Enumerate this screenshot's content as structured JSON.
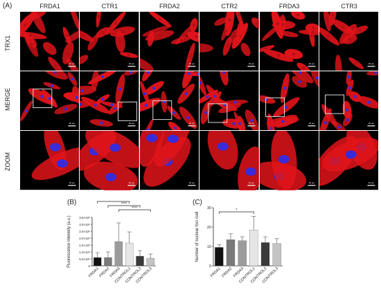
{
  "panel_labels": {
    "a": "(A)",
    "b": "(B)",
    "c": "(C)"
  },
  "columns": [
    "FRDA1",
    "CTR1",
    "FRDA2",
    "CTR2",
    "FRDA3",
    "CTR3"
  ],
  "rows": [
    "TRX1",
    "MERGE",
    "ZOOM"
  ],
  "scale_labels": [
    "20 μm",
    "20 μm",
    "20 μm",
    "20 μm",
    "20 μm",
    "20 μm"
  ],
  "colors": {
    "stain_red": "#e0141a",
    "nucleus_blue": "#3a2bd8",
    "background": "#000000"
  },
  "chart_data": [
    {
      "type": "bar",
      "panel": "(B)",
      "ylabel": "Fluorescence intensity (a.u.)",
      "categories": [
        "FRDA1",
        "FRDA2",
        "FRDA3",
        "CONTROL1",
        "CONTROL2",
        "CONTROL3"
      ],
      "values": [
        600000,
        600000,
        1750000,
        1650000,
        700000,
        550000
      ],
      "errors": [
        350000,
        400000,
        1350000,
        800000,
        400000,
        300000
      ],
      "bar_colors": [
        "#111111",
        "#7a7a7a",
        "#9c9c9c",
        "#e6e6e6",
        "#3a3a3a",
        "#c4c4c4"
      ],
      "ylim": [
        0,
        3500000
      ],
      "yticks": [
        "0",
        "5.0×10⁵",
        "1.0×10⁶",
        "1.5×10⁶",
        "2.0×10⁶",
        "2.5×10⁶",
        "3.0×10⁶",
        "3.5×10⁶"
      ],
      "significance": [
        {
          "from": "FRDA1",
          "to": "CONTROL1",
          "label": "*"
        },
        {
          "from": "FRDA2",
          "to": "CONTROL2",
          "label": "****"
        },
        {
          "from": "FRDA3",
          "to": "CONTROL3",
          "label": "****"
        }
      ]
    },
    {
      "type": "bar",
      "panel": "(C)",
      "ylabel": "Number of nuclear foci /cell",
      "categories": [
        "FRDA1",
        "FRDA2",
        "FRDA3",
        "CONTROL1",
        "CONTROL2",
        "CONTROL3"
      ],
      "values": [
        9.5,
        13.5,
        13,
        18.5,
        12,
        11.5
      ],
      "errors": [
        1.5,
        3,
        2,
        7,
        3,
        2.5
      ],
      "bar_colors": [
        "#111111",
        "#7a7a7a",
        "#9c9c9c",
        "#e6e6e6",
        "#3a3a3a",
        "#c4c4c4"
      ],
      "ylim": [
        0,
        30
      ],
      "yticks": [
        "0",
        "10",
        "20",
        "30"
      ],
      "significance": [
        {
          "from": "FRDA1",
          "to": "CONTROL1",
          "label": "*"
        }
      ]
    }
  ]
}
